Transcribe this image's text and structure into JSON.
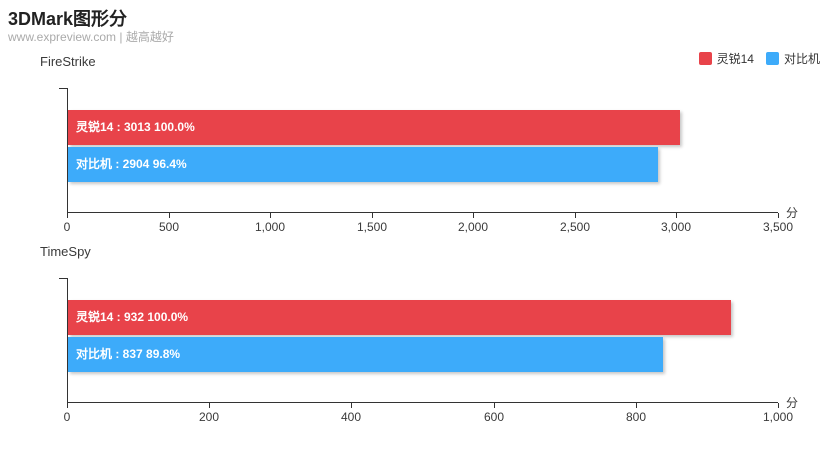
{
  "header": {
    "title": "3DMark图形分",
    "subtitle": "www.expreview.com | 越高越好"
  },
  "colors": {
    "series_red": "#e8434a",
    "series_blue": "#3dabfa",
    "axis": "#333333",
    "subtitle_gray": "#aaaaaa"
  },
  "legend": [
    {
      "label": "灵锐14",
      "color": "#e8434a"
    },
    {
      "label": "对比机",
      "color": "#3dabfa"
    }
  ],
  "chart_data": [
    {
      "type": "bar",
      "title": "FireStrike",
      "orientation": "horizontal",
      "unit": "分",
      "xlim": [
        0,
        3500
      ],
      "xticks": [
        0,
        500,
        1000,
        1500,
        2000,
        2500,
        3000,
        3500
      ],
      "xtick_labels": [
        "0",
        "500",
        "1,000",
        "1,500",
        "2,000",
        "2,500",
        "3,000",
        "3,500"
      ],
      "grid": false,
      "series": [
        {
          "name": "灵锐14",
          "value": 3013,
          "percent": "100.0%",
          "color": "#e8434a",
          "bar_label": "灵锐14 : 3013  100.0%"
        },
        {
          "name": "对比机",
          "value": 2904,
          "percent": "96.4%",
          "color": "#3dabfa",
          "bar_label": "对比机 : 2904  96.4%"
        }
      ]
    },
    {
      "type": "bar",
      "title": "TimeSpy",
      "orientation": "horizontal",
      "unit": "分",
      "xlim": [
        0,
        1000
      ],
      "xticks": [
        0,
        200,
        400,
        600,
        800,
        1000
      ],
      "xtick_labels": [
        "0",
        "200",
        "400",
        "600",
        "800",
        "1,000"
      ],
      "grid": false,
      "series": [
        {
          "name": "灵锐14",
          "value": 932,
          "percent": "100.0%",
          "color": "#e8434a",
          "bar_label": "灵锐14 : 932  100.0%"
        },
        {
          "name": "对比机",
          "value": 837,
          "percent": "89.8%",
          "color": "#3dabfa",
          "bar_label": "对比机 : 837  89.8%"
        }
      ]
    }
  ]
}
